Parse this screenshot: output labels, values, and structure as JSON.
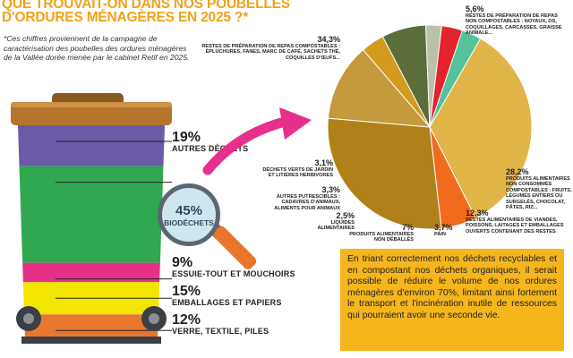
{
  "header": {
    "title_line1": "QUE TROUVAIT-ON DANS NOS POUBELLES",
    "title_line2": "D'ORDURES MÉNAGÈRES EN 2025 ?*",
    "note": "*Ces chiffres proviennent de la campagne de caractérisation des poubelles des ordures ménagères de la Vallée dorée menée par le cabinet Retif en 2025."
  },
  "bin_chart": {
    "type": "bar",
    "segments": [
      {
        "pct": "19%",
        "label": "AUTRES DÉCHETS",
        "value": 19,
        "color": "#6a5aa8"
      },
      {
        "pct": "45%",
        "label": "BIODÉCHETS",
        "value": 45,
        "color": "#2fa84f"
      },
      {
        "pct": "9%",
        "label": "ESSUIE-TOUT ET MOUCHOIRS",
        "value": 9,
        "color": "#e6308a"
      },
      {
        "pct": "15%",
        "label": "EMBALLAGES ET PAPIERS",
        "value": 15,
        "color": "#f2e600"
      },
      {
        "pct": "12%",
        "label": "VERRE, TEXTILE, PILES",
        "value": 12,
        "color": "#e8772d"
      }
    ]
  },
  "chart_data": {
    "type": "pie",
    "title": "",
    "slices": [
      {
        "pct": "34,3%",
        "value": 34.3,
        "label": "RESTES DE PRÉPARATION DE REPAS COMPOSTABLES : ÉPLUCHURES, FANES, MARC DE CAFÉ, SACHETS THÉ, COQUILLES D'ŒUFS...",
        "color": "#e2b548"
      },
      {
        "pct": "5,6%",
        "value": 5.6,
        "label": "RESTES DE PRÉPARATION DE REPAS NON COMPOSTABLES : NOYAUX, OS, COQUILLAGES, CARCASSES, GRAISSE ANIMALE...",
        "color": "#f26b1d"
      },
      {
        "pct": "28,2%",
        "value": 28.2,
        "label": "PRODUITS ALIMENTAIRES NON CONSOMMÉS COMPOSTABLES : FRUITS, LÉGUMES ENTIERS OU SURGELÉS, CHOCOLAT, PÂTES, RIZ...",
        "color": "#b08118"
      },
      {
        "pct": "12,3%",
        "value": 12.3,
        "label": "RESTES ALIMENTAIRES DE VIANDES, POISSONS, LAITAGES ET EMBALLAGES OUVERTS CONTENANT DES RESTES",
        "color": "#c49a3c"
      },
      {
        "pct": "3,7%",
        "value": 3.7,
        "label": "PAIN",
        "color": "#d49a1e"
      },
      {
        "pct": "7%",
        "value": 7,
        "label": "PRODUITS ALIMENTAIRES NON DÉBALLÉS",
        "color": "#5b6e3a"
      },
      {
        "pct": "2,5%",
        "value": 2.5,
        "label": "LIQUIDES ALIMENTAIRES",
        "color": "#bcc0a6"
      },
      {
        "pct": "3,3%",
        "value": 3.3,
        "label": "AUTRES PUTRESCIBLES : CADAVRES D'ANIMAUX, ALIMENTS POUR ANIMAUX",
        "color": "#e4232c"
      },
      {
        "pct": "3,1%",
        "value": 3.1,
        "label": "DÉCHETS VERTS DE JARDIN ET LITIÈRES HERBIVORES",
        "color": "#54c29a"
      }
    ]
  },
  "info_box": {
    "text": "En triant correctement nos déchets recyclables et en compostant nos déchets organiques, il serait possible de réduire le volume de nos ordures ménagères d'environ 70%, limitant ainsi fortement le transport et l'incinération inutile de ressources qui pourraient avoir une seconde vie."
  }
}
